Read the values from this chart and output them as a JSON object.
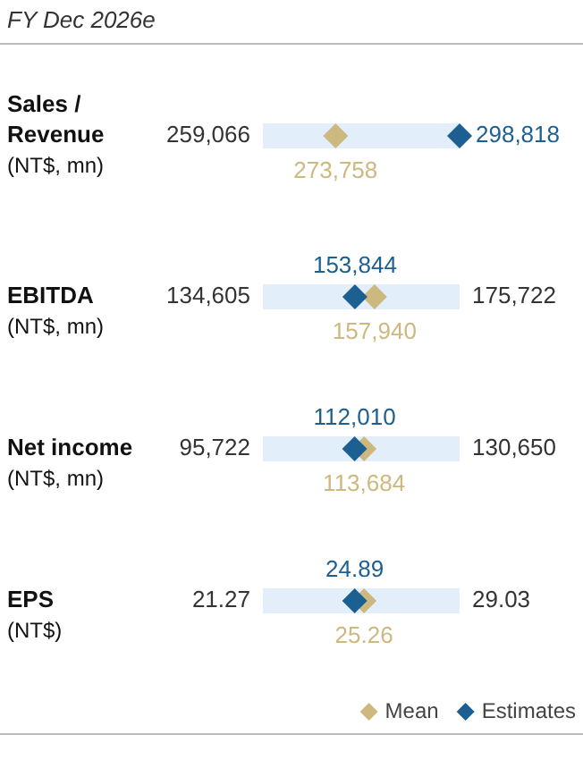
{
  "chart_data": {
    "type": "other",
    "title": "FY Dec 2026e",
    "categories": [
      "Sales /\nRevenue\n(NT$, mn)",
      "EBITDA\n(NT$, mn)",
      "Net income\n(NT$, mn)",
      "EPS\n(NT$)"
    ],
    "series": [
      {
        "color": "#e2effa",
        "values": [
          259066,
          134605,
          95722,
          21.27
        ],
        "value_labels": [
          "259,066",
          "134,605",
          "95,722",
          "21.27"
        ]
      },
      {
        "values": [
          null,
          175722,
          130650,
          29.03
        ],
        "value_labels": [
          null,
          "175,722",
          "130,650",
          "29.03"
        ]
      },
      {
        "name": "Mean",
        "color": "#cdb87f",
        "values": [
          273758,
          157940,
          113684,
          25.26
        ],
        "value_labels": [
          "273,758",
          "157,940",
          "113,684",
          "25.26"
        ]
      },
      {
        "name": "Estimates",
        "color": "#1c5f91",
        "values": [
          298818,
          153844,
          112010,
          24.89
        ],
        "value_labels": [
          "298,818",
          "153,844",
          "112,010",
          "24.89"
        ]
      }
    ],
    "legend": "bottom right"
  }
}
